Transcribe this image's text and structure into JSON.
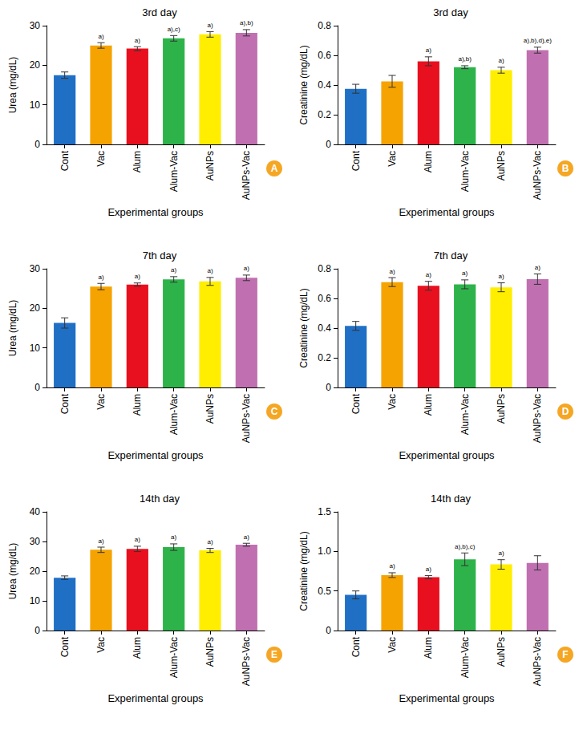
{
  "chart_data": [
    {
      "type": "bar",
      "panel": "A",
      "title": "3rd day",
      "y_label": "Urea (mg/dL)",
      "x_label": "Experimental groups",
      "categories": [
        "Cont",
        "Vac",
        "Alum",
        "Alum-Vac",
        "AuNPs",
        "AuNPs-Vac"
      ],
      "values": [
        17.5,
        25.0,
        24.2,
        26.8,
        27.8,
        28.2
      ],
      "errors": [
        0.8,
        0.7,
        0.5,
        0.7,
        0.7,
        0.8
      ],
      "annotations": [
        null,
        "a)",
        "a)",
        "a),c)",
        "a)",
        "a),b)"
      ],
      "colors": [
        "#1f6fc5",
        "#f5a300",
        "#e8101f",
        "#2db34a",
        "#ffee00",
        "#c070b0"
      ],
      "ylim": [
        0,
        30
      ],
      "yticks": [
        0,
        10,
        20,
        30
      ],
      "grid": false
    },
    {
      "type": "bar",
      "panel": "B",
      "title": "3rd day",
      "y_label": "Creatinine (mg/dL)",
      "x_label": "Experimental groups",
      "categories": [
        "Cont",
        "Vac",
        "Alum",
        "Alum-Vac",
        "AuNPs",
        "AuNPs-Vac"
      ],
      "values": [
        0.375,
        0.425,
        0.56,
        0.52,
        0.5,
        0.635
      ],
      "errors": [
        0.03,
        0.04,
        0.03,
        0.01,
        0.02,
        0.02
      ],
      "annotations": [
        null,
        null,
        "a)",
        "a),b)",
        "a)",
        "a),b),d),e)"
      ],
      "colors": [
        "#1f6fc5",
        "#f5a300",
        "#e8101f",
        "#2db34a",
        "#ffee00",
        "#c070b0"
      ],
      "ylim": [
        0,
        0.8
      ],
      "yticks": [
        0,
        0.2,
        0.4,
        0.6,
        0.8
      ],
      "grid": false
    },
    {
      "type": "bar",
      "panel": "C",
      "title": "7th day",
      "y_label": "Urea (mg/dL)",
      "x_label": "Experimental groups",
      "categories": [
        "Cont",
        "Vac",
        "Alum",
        "Alum-Vac",
        "AuNPs",
        "AuNPs-Vac"
      ],
      "values": [
        16.3,
        25.5,
        26.0,
        27.3,
        26.8,
        27.7
      ],
      "errors": [
        1.3,
        0.8,
        0.4,
        0.7,
        1.0,
        0.7
      ],
      "annotations": [
        null,
        "a)",
        "a)",
        "a)",
        "a)",
        "a)"
      ],
      "colors": [
        "#1f6fc5",
        "#f5a300",
        "#e8101f",
        "#2db34a",
        "#ffee00",
        "#c070b0"
      ],
      "ylim": [
        0,
        30
      ],
      "yticks": [
        0,
        10,
        20,
        30
      ],
      "grid": false
    },
    {
      "type": "bar",
      "panel": "D",
      "title": "7th day",
      "y_label": "Creatinine (mg/dL)",
      "x_label": "Experimental groups",
      "categories": [
        "Cont",
        "Vac",
        "Alum",
        "Alum-Vac",
        "AuNPs",
        "AuNPs-Vac"
      ],
      "values": [
        0.415,
        0.71,
        0.685,
        0.695,
        0.675,
        0.73
      ],
      "errors": [
        0.03,
        0.03,
        0.03,
        0.03,
        0.03,
        0.035
      ],
      "annotations": [
        null,
        "a)",
        "a)",
        "a)",
        "a)",
        "a)"
      ],
      "colors": [
        "#1f6fc5",
        "#f5a300",
        "#e8101f",
        "#2db34a",
        "#ffee00",
        "#c070b0"
      ],
      "ylim": [
        0,
        0.8
      ],
      "yticks": [
        0,
        0.2,
        0.4,
        0.6,
        0.8
      ],
      "grid": false
    },
    {
      "type": "bar",
      "panel": "E",
      "title": "14th day",
      "y_label": "Urea (mg/dL)",
      "x_label": "Experimental groups",
      "categories": [
        "Cont",
        "Vac",
        "Alum",
        "Alum-Vac",
        "AuNPs",
        "AuNPs-Vac"
      ],
      "values": [
        17.8,
        27.2,
        27.5,
        28.1,
        27.0,
        28.9
      ],
      "errors": [
        0.6,
        0.9,
        0.9,
        1.1,
        0.7,
        0.5
      ],
      "annotations": [
        null,
        "a)",
        "a)",
        "a)",
        "a)",
        "a)"
      ],
      "colors": [
        "#1f6fc5",
        "#f5a300",
        "#e8101f",
        "#2db34a",
        "#ffee00",
        "#c070b0"
      ],
      "ylim": [
        0,
        40
      ],
      "yticks": [
        0,
        10,
        20,
        30,
        40
      ],
      "grid": false
    },
    {
      "type": "bar",
      "panel": "F",
      "title": "14th day",
      "y_label": "Creatinine (mg/dL)",
      "x_label": "Experimental groups",
      "categories": [
        "Cont",
        "Vac",
        "Alum",
        "Alum-Vac",
        "AuNPs",
        "AuNPs-Vac"
      ],
      "values": [
        0.45,
        0.7,
        0.675,
        0.9,
        0.835,
        0.855
      ],
      "errors": [
        0.05,
        0.03,
        0.02,
        0.08,
        0.06,
        0.09
      ],
      "annotations": [
        null,
        "a)",
        "a)",
        "a),b),c)",
        "a)",
        null
      ],
      "colors": [
        "#1f6fc5",
        "#f5a300",
        "#e8101f",
        "#2db34a",
        "#ffee00",
        "#c070b0"
      ],
      "ylim": [
        0,
        1.5
      ],
      "yticks": [
        0,
        0.5,
        {
          "value": 1,
          "label": "1.0"
        },
        1.5
      ],
      "grid": false
    }
  ]
}
